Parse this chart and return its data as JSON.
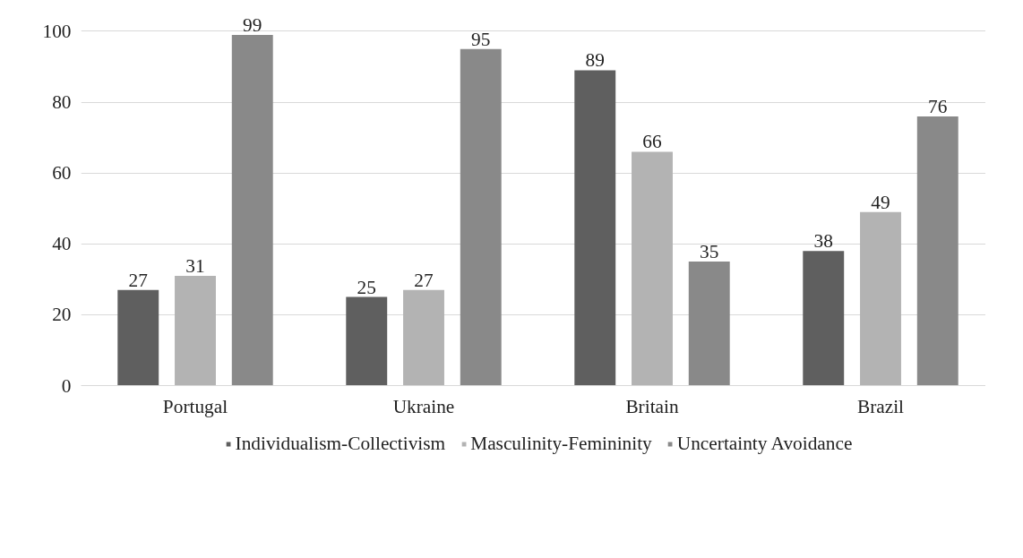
{
  "chart_data": {
    "type": "bar",
    "categories": [
      "Portugal",
      "Ukraine",
      "Britain",
      "Brazil"
    ],
    "series": [
      {
        "name": "Individualism-Collectivism",
        "color": "#5f5f5f",
        "values": [
          27,
          25,
          89,
          38
        ]
      },
      {
        "name": "Masculinity-Femininity",
        "color": "#b3b3b3",
        "values": [
          31,
          27,
          66,
          49
        ]
      },
      {
        "name": "Uncertainty Avoidance",
        "color": "#898989",
        "values": [
          99,
          95,
          35,
          76
        ]
      }
    ],
    "ylim": [
      0,
      100
    ],
    "yticks": [
      0,
      20,
      40,
      60,
      80,
      100
    ],
    "grid": "y",
    "data_labels": true,
    "legend": "bottom"
  }
}
